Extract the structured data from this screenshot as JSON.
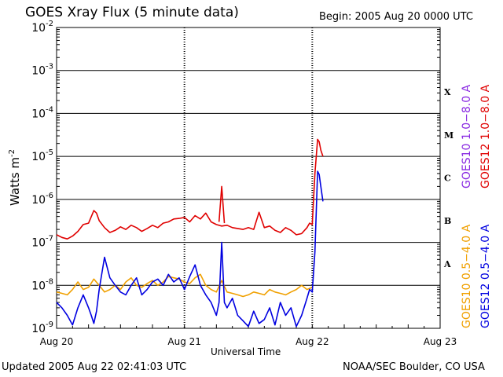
{
  "header": {
    "title": "GOES Xray Flux (5 minute data)",
    "begin": "Begin:  2005 Aug 20 0000 UTC"
  },
  "footer": {
    "updated": "Updated 2005 Aug 22 02:41:03 UTC",
    "credit": "NOAA/SEC Boulder, CO USA"
  },
  "colors": {
    "goes10_long": "#8a2be2",
    "goes12_long": "#e00000",
    "goes10_short": "#f0a000",
    "goes12_short": "#0000e0"
  },
  "chart_data": {
    "type": "line",
    "xlabel": "Universal Time",
    "ylabel": "Watts m",
    "ylabel_sup": "-2",
    "y_scale": "log",
    "ylim": [
      1e-09,
      0.01
    ],
    "xlim": [
      0,
      72
    ],
    "x_unit": "hours since begin",
    "x_ticks": [
      {
        "value": 0,
        "label": "Aug 20"
      },
      {
        "value": 24,
        "label": "Aug 21"
      },
      {
        "value": 48,
        "label": "Aug 22"
      },
      {
        "value": 72,
        "label": "Aug 23"
      }
    ],
    "y_ticks": [
      {
        "value": 1e-09,
        "base": "10",
        "exp": "-9"
      },
      {
        "value": 1e-08,
        "base": "10",
        "exp": "-8"
      },
      {
        "value": 1e-07,
        "base": "10",
        "exp": "-7"
      },
      {
        "value": 1e-06,
        "base": "10",
        "exp": "-6"
      },
      {
        "value": 1e-05,
        "base": "10",
        "exp": "-5"
      },
      {
        "value": 0.0001,
        "base": "10",
        "exp": "-4"
      },
      {
        "value": 0.001,
        "base": "10",
        "exp": "-3"
      },
      {
        "value": 0.01,
        "base": "10",
        "exp": "-2"
      }
    ],
    "flare_classes": [
      {
        "label": "A",
        "value": 3.16e-08
      },
      {
        "label": "B",
        "value": 3.16e-07
      },
      {
        "label": "C",
        "value": 3.16e-06
      },
      {
        "label": "M",
        "value": 3.16e-05
      },
      {
        "label": "X",
        "value": 0.000316
      }
    ],
    "grid_lines": [
      1e-08,
      1e-07,
      1e-06,
      1e-05,
      0.0001,
      0.001
    ],
    "legend": [
      {
        "label": "GOES10 1.0−8.0 A",
        "color_key": "goes10_long"
      },
      {
        "label": "GOES12 1.0−8.0 A",
        "color_key": "goes12_long"
      },
      {
        "label": "GOES10 0.5−4.0 A",
        "color_key": "goes10_short"
      },
      {
        "label": "GOES12 0.5−4.0 A",
        "color_key": "goes12_short"
      }
    ],
    "series": [
      {
        "name": "GOES12 1.0−8.0 A",
        "color_key": "goes12_long",
        "x": [
          0,
          1,
          2,
          3,
          4,
          5,
          6,
          7,
          7.5,
          8,
          9,
          10,
          11,
          12,
          13,
          14,
          15,
          16,
          17,
          18,
          19,
          20,
          21,
          22,
          23,
          24,
          25,
          26,
          27,
          28,
          29,
          30,
          31,
          32,
          33,
          34,
          35,
          36,
          37,
          38,
          39,
          40,
          41,
          42,
          43,
          44,
          45,
          46,
          47,
          47.5,
          48,
          48.5,
          49,
          49.3,
          49.6,
          50
        ],
        "y": [
          1.5e-07,
          1.3e-07,
          1.2e-07,
          1.4e-07,
          1.8e-07,
          2.6e-07,
          2.8e-07,
          5.5e-07,
          4.8e-07,
          3.2e-07,
          2.2e-07,
          1.7e-07,
          1.9e-07,
          2.3e-07,
          2e-07,
          2.5e-07,
          2.2e-07,
          1.8e-07,
          2.1e-07,
          2.5e-07,
          2.2e-07,
          2.8e-07,
          3e-07,
          3.5e-07,
          3.6e-07,
          3.8e-07,
          3e-07,
          4.2e-07,
          3.5e-07,
          4.8e-07,
          3e-07,
          2.6e-07,
          2.4e-07,
          2.5e-07,
          2.2e-07,
          2.1e-07,
          2e-07,
          2.2e-07,
          2e-07,
          5e-07,
          2.2e-07,
          2.4e-07,
          1.9e-07,
          1.7e-07,
          2.2e-07,
          1.9e-07,
          1.5e-07,
          1.6e-07,
          2.2e-07,
          2.8e-07,
          2.6e-07,
          4e-06,
          2.5e-05,
          2.2e-05,
          1.4e-05,
          1e-05
        ]
      },
      {
        "name": "GOES12 1.0−8.0 A (spike)",
        "color_key": "goes12_long",
        "x": [
          30.5,
          31,
          31.5
        ],
        "y": [
          3e-07,
          2e-06,
          2.8e-07
        ]
      },
      {
        "name": "GOES10 0.5−4.0 A",
        "color_key": "goes10_short",
        "x": [
          0,
          1,
          2,
          3,
          4,
          5,
          6,
          7,
          8,
          9,
          10,
          11,
          12,
          13,
          14,
          15,
          16,
          17,
          18,
          19,
          20,
          21,
          22,
          23,
          24,
          25,
          26,
          27,
          28,
          29,
          30,
          31,
          32,
          33,
          34,
          35,
          36,
          37,
          38,
          39,
          40,
          41,
          42,
          43,
          44,
          45,
          46,
          47,
          48
        ],
        "y": [
          7e-09,
          6.5e-09,
          6e-09,
          8e-09,
          1.2e-08,
          8e-09,
          9e-09,
          1.4e-08,
          1e-08,
          7e-09,
          8e-09,
          1e-08,
          8e-09,
          1.2e-08,
          1.5e-08,
          1e-08,
          9e-09,
          1.1e-08,
          1.3e-08,
          1e-08,
          1.2e-08,
          1.6e-08,
          1.5e-08,
          1.4e-08,
          1.2e-08,
          1.1e-08,
          1.5e-08,
          1.8e-08,
          1e-08,
          8e-09,
          7e-09,
          1.3e-08,
          7e-09,
          6.5e-09,
          6e-09,
          5.5e-09,
          6e-09,
          7e-09,
          6.5e-09,
          6e-09,
          8e-09,
          7e-09,
          6.5e-09,
          6e-09,
          7e-09,
          8e-09,
          1e-08,
          8e-09,
          9e-09
        ]
      },
      {
        "name": "GOES12 0.5−4.0 A",
        "color_key": "goes12_short",
        "x": [
          0,
          1,
          2,
          3,
          4,
          5,
          6,
          6.5,
          7,
          7.5,
          8,
          9,
          10,
          11,
          12,
          13,
          14,
          15,
          16,
          17,
          18,
          19,
          20,
          21,
          22,
          23,
          24,
          25,
          26,
          27,
          28,
          29,
          30,
          30.5,
          31,
          31.5,
          32,
          33,
          34,
          35,
          36,
          37,
          38,
          39,
          40,
          41,
          42,
          43,
          44,
          45,
          46,
          47,
          47.5,
          48,
          48.5,
          49,
          49.3,
          49.6,
          50
        ],
        "y": [
          4e-09,
          3e-09,
          2e-09,
          1.2e-09,
          3e-09,
          6e-09,
          3e-09,
          2e-09,
          1.3e-09,
          2.5e-09,
          8e-09,
          4.5e-08,
          1.5e-08,
          1e-08,
          7e-09,
          6e-09,
          1e-08,
          1.5e-08,
          6e-09,
          8e-09,
          1.2e-08,
          1.4e-08,
          1e-08,
          1.8e-08,
          1.2e-08,
          1.5e-08,
          8e-09,
          1.6e-08,
          3e-08,
          1e-08,
          6e-09,
          4e-09,
          2e-09,
          4e-09,
          1e-07,
          4e-09,
          3e-09,
          5e-09,
          2e-09,
          1.5e-09,
          1.1e-09,
          2.5e-09,
          1.3e-09,
          1.6e-09,
          3e-09,
          1.2e-09,
          4e-09,
          2e-09,
          3e-09,
          1.1e-09,
          2e-09,
          5e-09,
          8e-09,
          7e-09,
          6e-08,
          4.5e-06,
          3.8e-06,
          2e-06,
          9e-07
        ]
      }
    ]
  }
}
